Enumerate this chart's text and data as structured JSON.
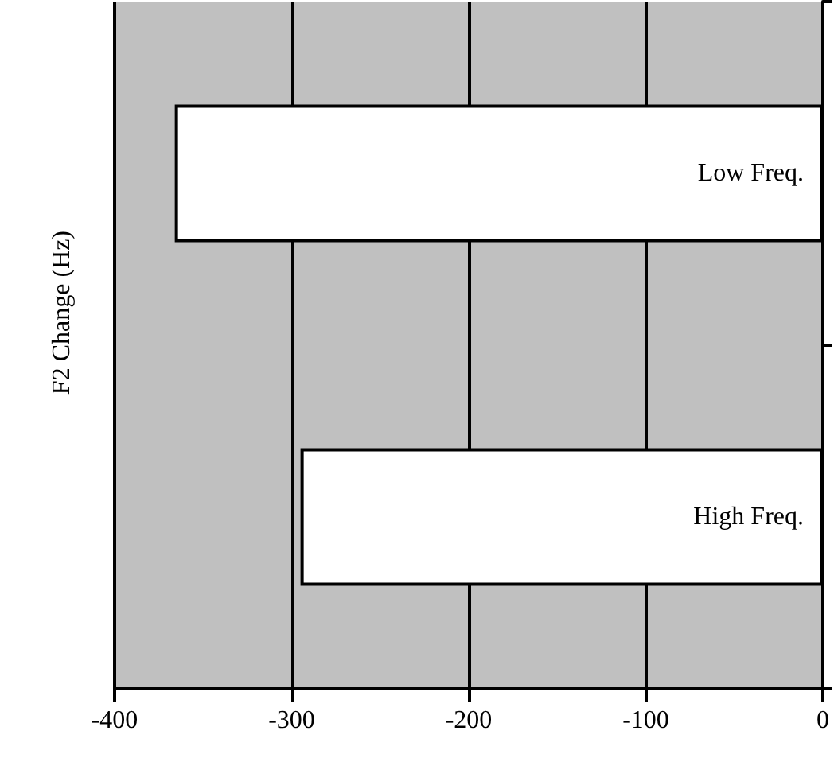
{
  "chart_data": {
    "type": "bar",
    "orientation": "horizontal",
    "ylabel": "F2 Change (Hz)",
    "categories": [
      "Low Freq.",
      "High Freq."
    ],
    "values": [
      -366,
      -295
    ],
    "color": "#ffffff",
    "xlim": [
      -400,
      0
    ],
    "xticks": [
      -400,
      -300,
      -200,
      -100,
      0
    ],
    "grid": "x"
  }
}
